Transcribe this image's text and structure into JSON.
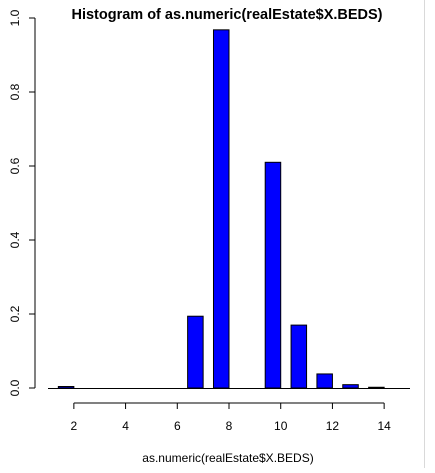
{
  "chart_data": {
    "type": "bar",
    "title": "Histogram of as.numeric(realEstate$X.BEDS)",
    "xlabel": "as.numeric(realEstate$X.BEDS)",
    "ylabel": "",
    "x_ticks": [
      "2",
      "4",
      "6",
      "8",
      "10",
      "12",
      "14"
    ],
    "y_ticks": [
      "0.0",
      "0.2",
      "0.4",
      "0.6",
      "0.8",
      "1.0"
    ],
    "xlim": [
      1,
      15
    ],
    "ylim": [
      0,
      1
    ],
    "grid": false,
    "bar_width": 0.6,
    "bars": [
      {
        "x": 1.7,
        "value": 0.004
      },
      {
        "x": 6.7,
        "value": 0.194
      },
      {
        "x": 7.7,
        "value": 0.968
      },
      {
        "x": 9.7,
        "value": 0.61
      },
      {
        "x": 10.7,
        "value": 0.17
      },
      {
        "x": 11.7,
        "value": 0.038
      },
      {
        "x": 12.7,
        "value": 0.009
      },
      {
        "x": 13.7,
        "value": 0.002
      }
    ],
    "colors": {
      "bar_fill": "#0000ff",
      "bar_stroke": "#000000",
      "axis": "#000000"
    }
  }
}
